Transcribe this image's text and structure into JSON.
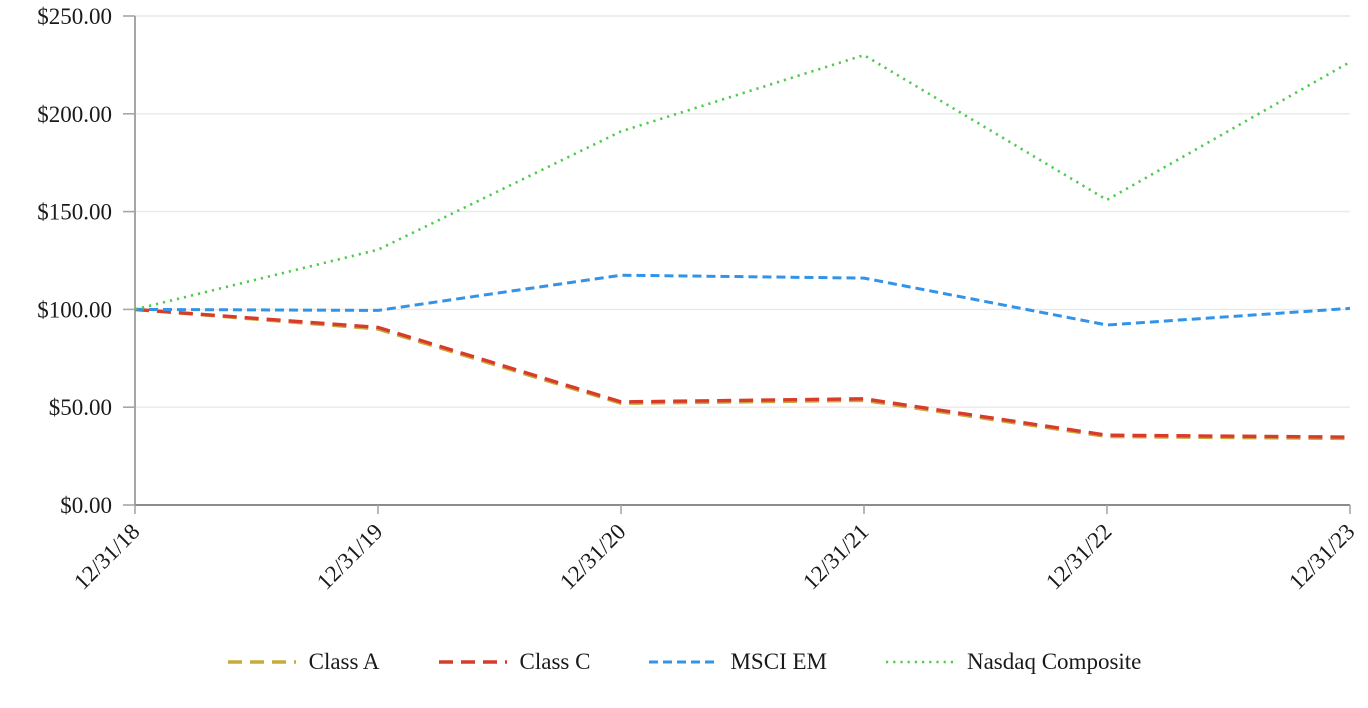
{
  "chart_data": {
    "type": "line",
    "title": "",
    "categories": [
      "12/31/18",
      "12/31/19",
      "12/31/20",
      "12/31/21",
      "12/31/22",
      "12/31/23"
    ],
    "series": [
      {
        "name": "Class A",
        "color": "#C4AB3C",
        "dash_style": "long-dash",
        "values": [
          100,
          90,
          52,
          53.5,
          35,
          34
        ]
      },
      {
        "name": "Class C",
        "color": "#D93B2B",
        "dash_style": "long-dash",
        "values": [
          100,
          90.8,
          52.7,
          54.3,
          35.7,
          34.7
        ]
      },
      {
        "name": "MSCI EM",
        "color": "#3294E8",
        "dash_style": "dash",
        "values": [
          100,
          99.5,
          117.5,
          116,
          92,
          100.5
        ]
      },
      {
        "name": "Nasdaq Composite",
        "color": "#4CCB4C",
        "dash_style": "dot",
        "values": [
          100,
          130.5,
          191,
          230,
          156,
          226.5
        ]
      }
    ],
    "y_axis": {
      "min": 0,
      "max": 250,
      "tick_step": 50,
      "tick_labels": [
        "$0.00",
        "$50.00",
        "$100.00",
        "$150.00",
        "$200.00",
        "$250.00"
      ]
    },
    "x_axis": {
      "tick_labels": [
        "12/31/18",
        "12/31/19",
        "12/31/20",
        "12/31/21",
        "12/31/22",
        "12/31/23"
      ],
      "label_rotation_deg": -45
    },
    "grid": true,
    "legend_position": "bottom",
    "colors": {
      "gridline": "#E9E9E9",
      "y_axis_line": "#A6A6A6",
      "x_axis_line": "#8C8C8C",
      "tick_mark": "#A6A6A6",
      "label_text": "#1A1A1A",
      "background": "#FFFFFF"
    }
  }
}
